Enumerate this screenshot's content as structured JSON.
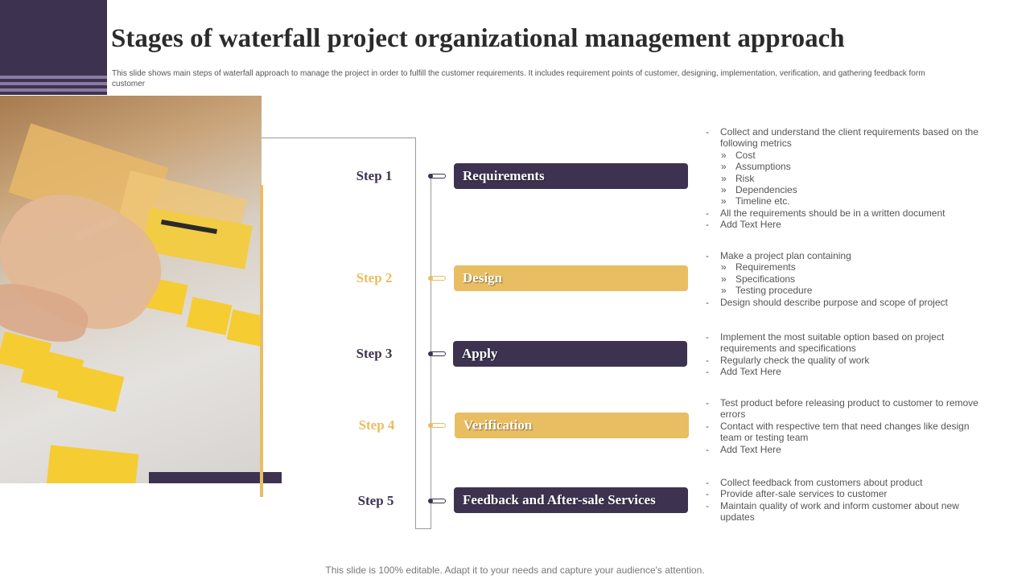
{
  "title": "Stages of waterfall project organizational management approach",
  "subtitle": "This slide shows main steps of waterfall approach to manage the project in order to fulfill the customer requirements. It includes requirement points of customer, designing, implementation,  verification, and gathering feedback form customer",
  "colors": {
    "accent_dark": "#3d3350",
    "accent_gold": "#e9bd62",
    "stripe": "#8a7aa3"
  },
  "photo": {
    "description_icon": "sticky-notes-photo"
  },
  "steps": [
    {
      "label": "Step 1",
      "title": "Requirements",
      "color": "dark",
      "details": [
        {
          "level": 1,
          "text": "Collect and understand the client requirements based on the following metrics"
        },
        {
          "level": 2,
          "text": "Cost"
        },
        {
          "level": 2,
          "text": "Assumptions"
        },
        {
          "level": 2,
          "text": "Risk"
        },
        {
          "level": 2,
          "text": "Dependencies"
        },
        {
          "level": 2,
          "text": "Timeline etc."
        },
        {
          "level": 1,
          "text": "All the requirements should be in a written document"
        },
        {
          "level": 1,
          "text": "Add Text Here"
        }
      ]
    },
    {
      "label": "Step 2",
      "title": "Design",
      "color": "gold",
      "details": [
        {
          "level": 1,
          "text": "Make  a project plan containing"
        },
        {
          "level": 2,
          "text": "Requirements"
        },
        {
          "level": 2,
          "text": "Specifications"
        },
        {
          "level": 2,
          "text": "Testing procedure"
        },
        {
          "level": 1,
          "text": "Design should describe purpose and scope of project"
        }
      ]
    },
    {
      "label": "Step 3",
      "title": "Apply",
      "color": "dark",
      "details": [
        {
          "level": 1,
          "text": "Implement the most suitable option based on project requirements and specifications"
        },
        {
          "level": 1,
          "text": "Regularly check the quality of work"
        },
        {
          "level": 1,
          "text": "Add Text Here"
        }
      ]
    },
    {
      "label": "Step 4",
      "title": "Verification",
      "color": "gold",
      "details": [
        {
          "level": 1,
          "text": "Test product before releasing product to customer to remove errors"
        },
        {
          "level": 1,
          "text": "Contact with respective tem that need changes like design team or testing team"
        },
        {
          "level": 1,
          "text": "Add Text Here"
        }
      ]
    },
    {
      "label": "Step 5",
      "title": "Feedback and After-sale Services",
      "color": "dark",
      "details": [
        {
          "level": 1,
          "text": "Collect feedback from customers about product"
        },
        {
          "level": 1,
          "text": "Provide after-sale services to customer"
        },
        {
          "level": 1,
          "text": "Maintain quality of work and inform customer about new updates"
        }
      ]
    }
  ],
  "footer": "This slide is 100% editable. Adapt it to your needs and capture your audience's attention."
}
